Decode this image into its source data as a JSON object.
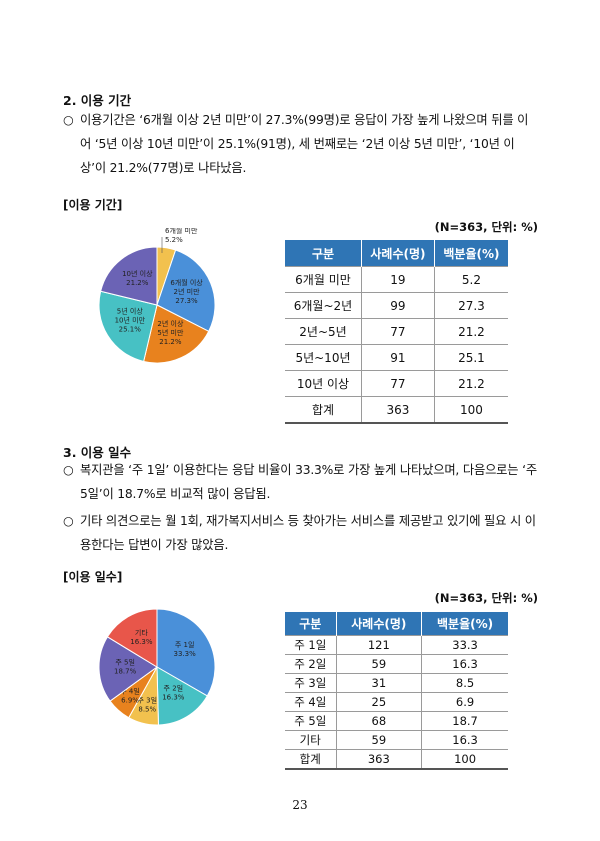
{
  "section2": {
    "heading": "2. 이용 기간",
    "bullet": "○",
    "paragraph": "이용기간은 ‘6개월 이상 2년 미만’이 27.3%(99명)로 응답이 가장 높게 나왔으며 뒤를 이어 ‘5년 이상 10년 미만’이 25.1%(91명), 세 번째로는 ‘2년 이상 5년 미만’, ‘10년 이상’이 21.2%(77명)로 나타났음.",
    "table_title": "[이용 기간]",
    "unit_note": "(N=363, 단위: %)",
    "table": {
      "headers": [
        "구분",
        "사례수(명)",
        "백분율(%)"
      ],
      "rows": [
        [
          "6개월 미만",
          "19",
          "5.2"
        ],
        [
          "6개월~2년",
          "99",
          "27.3"
        ],
        [
          "2년~5년",
          "77",
          "21.2"
        ],
        [
          "5년~10년",
          "91",
          "25.1"
        ],
        [
          "10년 이상",
          "77",
          "21.2"
        ],
        [
          "합계",
          "363",
          "100"
        ]
      ]
    }
  },
  "section3": {
    "heading": "3. 이용 일수",
    "bullets": [
      {
        "symbol": "○",
        "text": "복지관을 ‘주 1일’ 이용한다는 응답 비율이 33.3%로 가장 높게 나타났으며, 다음으로는 ‘주 5일’이 18.7%로 비교적 많이 응답됨."
      },
      {
        "symbol": "○",
        "text": "기타 의견으로는 월 1회, 재가복지서비스 등 찾아가는 서비스를 제공받고 있기에 필요 시 이용한다는 답변이 가장 많았음."
      }
    ],
    "table_title": "[이용 일수]",
    "unit_note": "(N=363, 단위: %)",
    "table": {
      "headers": [
        "구분",
        "사례수(명)",
        "백분율(%)"
      ],
      "rows": [
        [
          "주 1일",
          "121",
          "33.3"
        ],
        [
          "주 2일",
          "59",
          "16.3"
        ],
        [
          "주 3일",
          "31",
          "8.5"
        ],
        [
          "주 4일",
          "25",
          "6.9"
        ],
        [
          "주 5일",
          "68",
          "18.7"
        ],
        [
          "기타",
          "59",
          "16.3"
        ],
        [
          "합계",
          "363",
          "100"
        ]
      ]
    }
  },
  "page_number": "23",
  "chart_data": [
    {
      "type": "pie",
      "start": "top",
      "direction": "clockwise",
      "slices": [
        {
          "label": [
            "6개월 미만",
            "5.2%"
          ],
          "value": 5.2,
          "color": "#f2c14e",
          "outside": true
        },
        {
          "label": [
            "6개월 이상",
            "2년 미만",
            "27.3%"
          ],
          "value": 27.3,
          "color": "#4a90d9"
        },
        {
          "label": [
            "2년 이상",
            "5년 미만",
            "21.2%"
          ],
          "value": 21.2,
          "color": "#e8821e"
        },
        {
          "label": [
            "5년 이상",
            "10년 미만",
            "25.1%"
          ],
          "value": 25.1,
          "color": "#47c1c4"
        },
        {
          "label": [
            "10년 이상",
            "21.2%"
          ],
          "value": 21.2,
          "color": "#6b63b5"
        }
      ]
    },
    {
      "type": "pie",
      "start": "top",
      "direction": "clockwise",
      "slices": [
        {
          "label": [
            "주 1일",
            "33.3%"
          ],
          "value": 33.3,
          "color": "#4a90d9"
        },
        {
          "label": [
            "주 2일",
            "16.3%"
          ],
          "value": 16.3,
          "color": "#47c1c4"
        },
        {
          "label": [
            "주 3일",
            "8.5%"
          ],
          "value": 8.5,
          "color": "#f2c14e"
        },
        {
          "label": [
            "주 4일",
            "6.9%"
          ],
          "value": 6.9,
          "color": "#e8821e"
        },
        {
          "label": [
            "주 5일",
            "18.7%"
          ],
          "value": 18.7,
          "color": "#6b63b5"
        },
        {
          "label": [
            "기타",
            "16.3%"
          ],
          "value": 16.3,
          "color": "#e8564a"
        }
      ]
    }
  ]
}
